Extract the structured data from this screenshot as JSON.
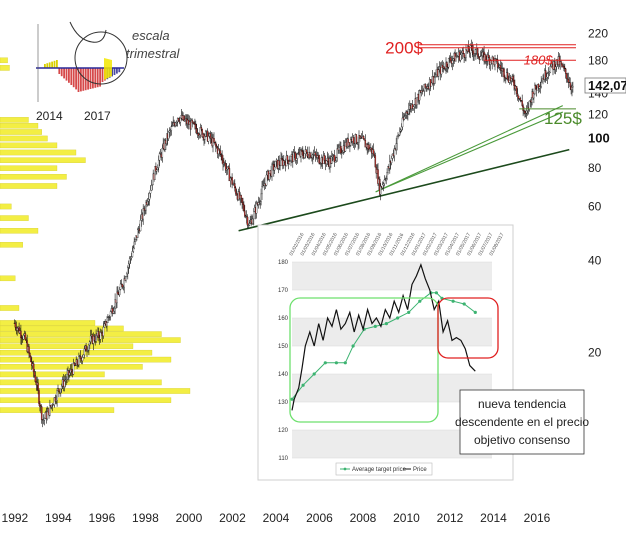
{
  "chart_data": [
    {
      "type": "candlestick",
      "scale": "log",
      "x_ticks": [
        "1992",
        "1994",
        "1996",
        "1998",
        "2000",
        "2002",
        "2004",
        "2006",
        "2008",
        "2010",
        "2012",
        "2014",
        "2016"
      ],
      "y_ticks": [
        "220",
        "180",
        "140",
        "120",
        "100",
        "80",
        "60",
        "40",
        "20"
      ],
      "y_tick_values": [
        220,
        180,
        140,
        120,
        100,
        80,
        60,
        40,
        20
      ],
      "xlim": [
        1991.7,
        2017.9
      ],
      "ylim": [
        10,
        240
      ],
      "current_price": "142,07",
      "price_path": [
        [
          1992.0,
          25
        ],
        [
          1992.5,
          22
        ],
        [
          1993.0,
          16
        ],
        [
          1993.3,
          12
        ],
        [
          1993.6,
          13
        ],
        [
          1994.0,
          15
        ],
        [
          1994.5,
          17
        ],
        [
          1995.0,
          19
        ],
        [
          1995.5,
          22
        ],
        [
          1996.0,
          23
        ],
        [
          1996.5,
          28
        ],
        [
          1997.0,
          34
        ],
        [
          1997.5,
          45
        ],
        [
          1998.0,
          60
        ],
        [
          1998.5,
          80
        ],
        [
          1999.0,
          100
        ],
        [
          1999.5,
          118
        ],
        [
          2000.0,
          112
        ],
        [
          2000.5,
          106
        ],
        [
          2001.0,
          100
        ],
        [
          2001.5,
          88
        ],
        [
          2002.0,
          72
        ],
        [
          2002.5,
          60
        ],
        [
          2002.8,
          52
        ],
        [
          2003.2,
          62
        ],
        [
          2003.6,
          75
        ],
        [
          2004.0,
          82
        ],
        [
          2004.5,
          85
        ],
        [
          2005.0,
          88
        ],
        [
          2005.5,
          90
        ],
        [
          2006.0,
          86
        ],
        [
          2006.5,
          84
        ],
        [
          2007.0,
          92
        ],
        [
          2007.5,
          100
        ],
        [
          2008.0,
          98
        ],
        [
          2008.5,
          90
        ],
        [
          2008.8,
          68
        ],
        [
          2009.2,
          80
        ],
        [
          2009.6,
          100
        ],
        [
          2010.0,
          122
        ],
        [
          2010.5,
          135
        ],
        [
          2011.0,
          150
        ],
        [
          2011.5,
          165
        ],
        [
          2012.0,
          180
        ],
        [
          2012.5,
          188
        ],
        [
          2013.0,
          195
        ],
        [
          2013.5,
          185
        ],
        [
          2014.0,
          180
        ],
        [
          2014.5,
          165
        ],
        [
          2015.0,
          150
        ],
        [
          2015.3,
          130
        ],
        [
          2015.5,
          118
        ],
        [
          2015.8,
          140
        ],
        [
          2016.2,
          155
        ],
        [
          2016.6,
          170
        ],
        [
          2017.0,
          178
        ],
        [
          2017.4,
          160
        ],
        [
          2017.7,
          142
        ]
      ],
      "annotations": [
        {
          "text": "200$",
          "color": "#e02020",
          "level": 200
        },
        {
          "text": "180$",
          "color": "#e02020",
          "level": 180
        },
        {
          "text": "125$",
          "color": "#4a8a2a",
          "level": 125
        }
      ],
      "trendlines": [
        {
          "from": [
            2002.3,
            50
          ],
          "to": [
            2017.5,
            92
          ],
          "color": "#1c4a1c"
        },
        {
          "from": [
            2008.6,
            67
          ],
          "to": [
            2017.2,
            128
          ],
          "color": "#4a9a3a"
        },
        {
          "from": [
            2008.6,
            67
          ],
          "to": [
            2017.2,
            122
          ],
          "color": "#4a9a3a"
        }
      ],
      "volume_profile": [
        {
          "price": 13,
          "width": 0.6
        },
        {
          "price": 14,
          "width": 0.9
        },
        {
          "price": 15,
          "width": 1.0
        },
        {
          "price": 16,
          "width": 0.85
        },
        {
          "price": 17,
          "width": 0.55
        },
        {
          "price": 18,
          "width": 0.75
        },
        {
          "price": 19,
          "width": 0.9
        },
        {
          "price": 20,
          "width": 0.8
        },
        {
          "price": 21,
          "width": 0.7
        },
        {
          "price": 22,
          "width": 0.95
        },
        {
          "price": 23,
          "width": 0.85
        },
        {
          "price": 24,
          "width": 0.65
        },
        {
          "price": 25,
          "width": 0.5
        },
        {
          "price": 28,
          "width": 0.1
        },
        {
          "price": 35,
          "width": 0.08
        },
        {
          "price": 45,
          "width": 0.12
        },
        {
          "price": 50,
          "width": 0.2
        },
        {
          "price": 55,
          "width": 0.15
        },
        {
          "price": 60,
          "width": 0.06
        },
        {
          "price": 70,
          "width": 0.3
        },
        {
          "price": 75,
          "width": 0.35
        },
        {
          "price": 80,
          "width": 0.3
        },
        {
          "price": 85,
          "width": 0.45
        },
        {
          "price": 90,
          "width": 0.4
        },
        {
          "price": 95,
          "width": 0.3
        },
        {
          "price": 100,
          "width": 0.25
        },
        {
          "price": 105,
          "width": 0.22
        },
        {
          "price": 110,
          "width": 0.2
        },
        {
          "price": 115,
          "width": 0.15
        },
        {
          "price": 170,
          "width": 0.05
        },
        {
          "price": 180,
          "width": 0.04
        }
      ]
    },
    {
      "type": "bar",
      "title": "escala trimestral",
      "x_ticks": [
        "2014",
        "2017"
      ]
    },
    {
      "type": "line",
      "y_ticks": [
        "180",
        "170",
        "160",
        "150",
        "140",
        "130",
        "120",
        "110"
      ],
      "ylim": [
        110,
        180
      ],
      "x_dates": [
        "01/02/2016",
        "01/03/2016",
        "01/04/2016",
        "01/05/2016",
        "01/06/2016",
        "01/07/2016",
        "01/08/2016",
        "01/09/2016",
        "01/10/2016",
        "01/11/2016",
        "01/12/2016",
        "01/01/2017",
        "01/02/2017",
        "01/03/2017",
        "01/04/2017",
        "01/05/2017",
        "01/06/2017",
        "01/07/2017",
        "01/08/2017"
      ],
      "legend": [
        "Average target price",
        "Price"
      ],
      "legend_position": "bottom",
      "series": [
        {
          "name": "Average target price",
          "color": "#3cb371",
          "values": [
            [
              0.0,
              131
            ],
            [
              1.0,
              136
            ],
            [
              2.0,
              140
            ],
            [
              3.0,
              144
            ],
            [
              4.0,
              144
            ],
            [
              4.8,
              144
            ],
            [
              5.5,
              150
            ],
            [
              6.5,
              156
            ],
            [
              7.5,
              157
            ],
            [
              8.5,
              158
            ],
            [
              9.5,
              160
            ],
            [
              10.5,
              162
            ],
            [
              11.5,
              166
            ],
            [
              12.5,
              169
            ],
            [
              13.0,
              169
            ],
            [
              13.5,
              167
            ],
            [
              14.5,
              166
            ],
            [
              15.5,
              165
            ],
            [
              16.5,
              162
            ]
          ]
        },
        {
          "name": "Price",
          "color": "#111111",
          "values": [
            [
              0.0,
              127
            ],
            [
              0.2,
              131
            ],
            [
              0.6,
              135
            ],
            [
              0.9,
              142
            ],
            [
              1.2,
              150
            ],
            [
              1.6,
              155
            ],
            [
              2.0,
              150
            ],
            [
              2.4,
              158
            ],
            [
              2.8,
              152
            ],
            [
              3.2,
              160
            ],
            [
              3.6,
              157
            ],
            [
              4.0,
              163
            ],
            [
              4.4,
              156
            ],
            [
              4.8,
              158
            ],
            [
              5.2,
              162
            ],
            [
              5.6,
              155
            ],
            [
              6.0,
              161
            ],
            [
              6.4,
              156
            ],
            [
              6.8,
              163
            ],
            [
              7.2,
              158
            ],
            [
              7.6,
              160
            ],
            [
              8.0,
              157
            ],
            [
              8.4,
              163
            ],
            [
              8.8,
              160
            ],
            [
              9.2,
              166
            ],
            [
              9.6,
              162
            ],
            [
              10.0,
              168
            ],
            [
              10.4,
              163
            ],
            [
              10.8,
              172
            ],
            [
              11.2,
              175
            ],
            [
              11.6,
              179
            ],
            [
              12.0,
              174
            ],
            [
              12.4,
              170
            ],
            [
              12.8,
              163
            ],
            [
              13.2,
              166
            ],
            [
              13.6,
              155
            ],
            [
              14.0,
              159
            ],
            [
              14.4,
              152
            ],
            [
              14.8,
              153
            ],
            [
              15.2,
              152
            ],
            [
              15.6,
              149
            ],
            [
              16.0,
              143
            ],
            [
              16.5,
              141
            ]
          ]
        }
      ],
      "callout": "nueva tendencia descendente en el precio objetivo consenso"
    }
  ]
}
